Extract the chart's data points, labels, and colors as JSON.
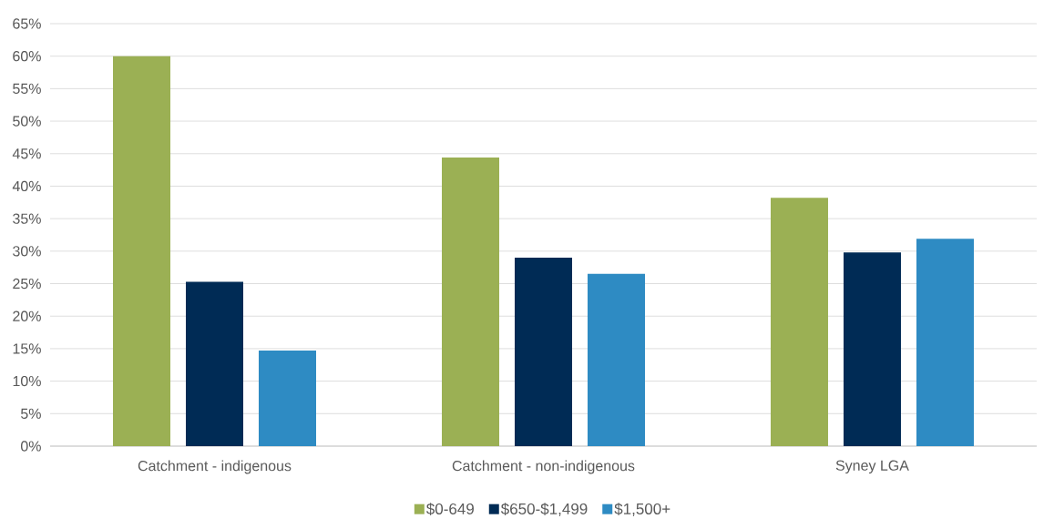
{
  "chart_data": {
    "type": "bar",
    "categories": [
      "Catchment - indigenous",
      "Catchment - non-indigenous",
      "Syney LGA"
    ],
    "series": [
      {
        "name": "$0-649",
        "color": "#9bb054",
        "values": [
          60,
          44.4,
          38.2
        ]
      },
      {
        "name": "$650-$1,499",
        "color": "#002b55",
        "values": [
          25.3,
          29.0,
          29.8
        ]
      },
      {
        "name": "$1,500+",
        "color": "#2e8bc3",
        "values": [
          14.7,
          26.5,
          31.9
        ]
      }
    ],
    "ylim": [
      0,
      65
    ],
    "yticks": [
      {
        "value": 0,
        "label": "0%"
      },
      {
        "value": 5,
        "label": "5%"
      },
      {
        "value": 10,
        "label": "10%"
      },
      {
        "value": 15,
        "label": "15%"
      },
      {
        "value": 20,
        "label": "20%"
      },
      {
        "value": 25,
        "label": "25%"
      },
      {
        "value": 30,
        "label": "30%"
      },
      {
        "value": 35,
        "label": "35%"
      },
      {
        "value": 40,
        "label": "40%"
      },
      {
        "value": 45,
        "label": "45%"
      },
      {
        "value": 50,
        "label": "50%"
      },
      {
        "value": 55,
        "label": "55%"
      },
      {
        "value": 60,
        "label": "60%"
      },
      {
        "value": 65,
        "label": "65%"
      }
    ],
    "grid": "y",
    "legend": "bottom"
  }
}
